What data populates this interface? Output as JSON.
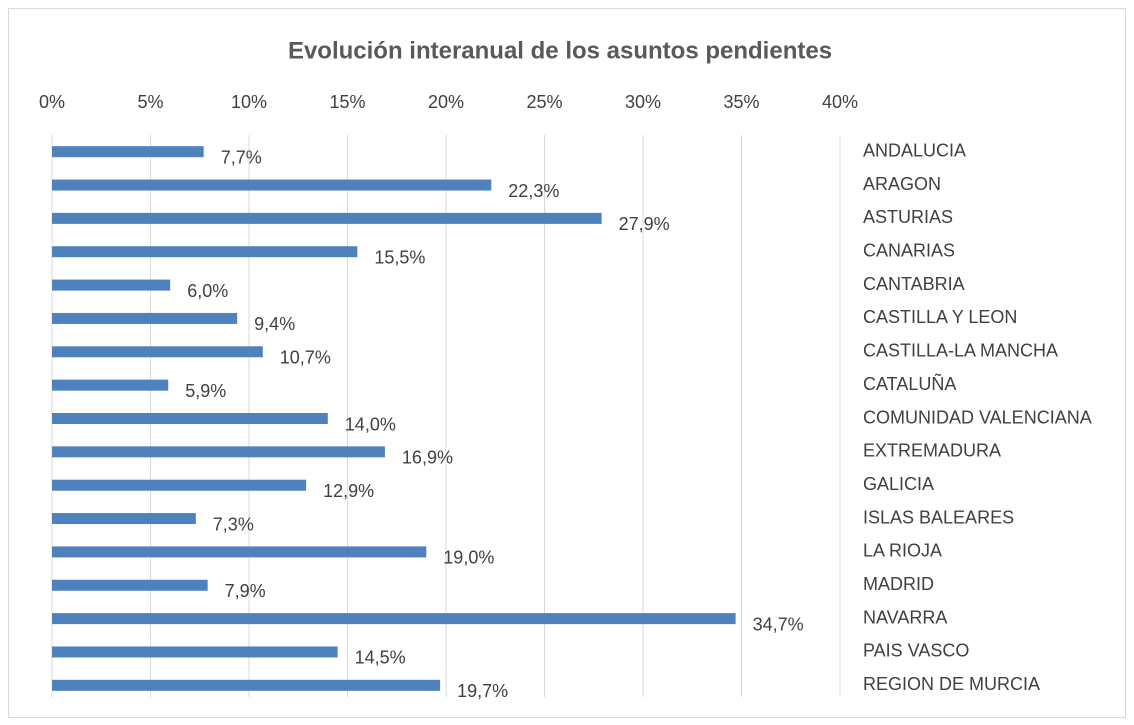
{
  "chart_data": {
    "type": "bar",
    "orientation": "horizontal",
    "title": "Evolución interanual de los asuntos pendientes",
    "categories": [
      "ANDALUCIA",
      "ARAGON",
      "ASTURIAS",
      "CANARIAS",
      "CANTABRIA",
      "CASTILLA Y LEON",
      "CASTILLA-LA MANCHA",
      "CATALUÑA",
      "COMUNIDAD VALENCIANA",
      "EXTREMADURA",
      "GALICIA",
      "ISLAS BALEARES",
      "LA RIOJA",
      "MADRID",
      "NAVARRA",
      "PAIS VASCO",
      "REGION DE MURCIA"
    ],
    "values": [
      7.7,
      22.3,
      27.9,
      15.5,
      6.0,
      9.4,
      10.7,
      5.9,
      14.0,
      16.9,
      12.9,
      7.3,
      19.0,
      7.9,
      34.7,
      14.5,
      19.7
    ],
    "value_labels": [
      "7,7%",
      "22,3%",
      "27,9%",
      "15,5%",
      "6,0%",
      "9,4%",
      "10,7%",
      "5,9%",
      "14,0%",
      "16,9%",
      "12,9%",
      "7,3%",
      "19,0%",
      "7,9%",
      "34,7%",
      "14,5%",
      "19,7%"
    ],
    "color": "#4f81bd",
    "xlim": [
      0,
      40
    ],
    "xticks": [
      {
        "value": 0,
        "label": "0%"
      },
      {
        "value": 5,
        "label": "5%"
      },
      {
        "value": 10,
        "label": "10%"
      },
      {
        "value": 15,
        "label": "15%"
      },
      {
        "value": 20,
        "label": "20%"
      },
      {
        "value": 25,
        "label": "25%"
      },
      {
        "value": 30,
        "label": "30%"
      },
      {
        "value": 35,
        "label": "35%"
      },
      {
        "value": 40,
        "label": "40%"
      }
    ],
    "grid": true
  }
}
